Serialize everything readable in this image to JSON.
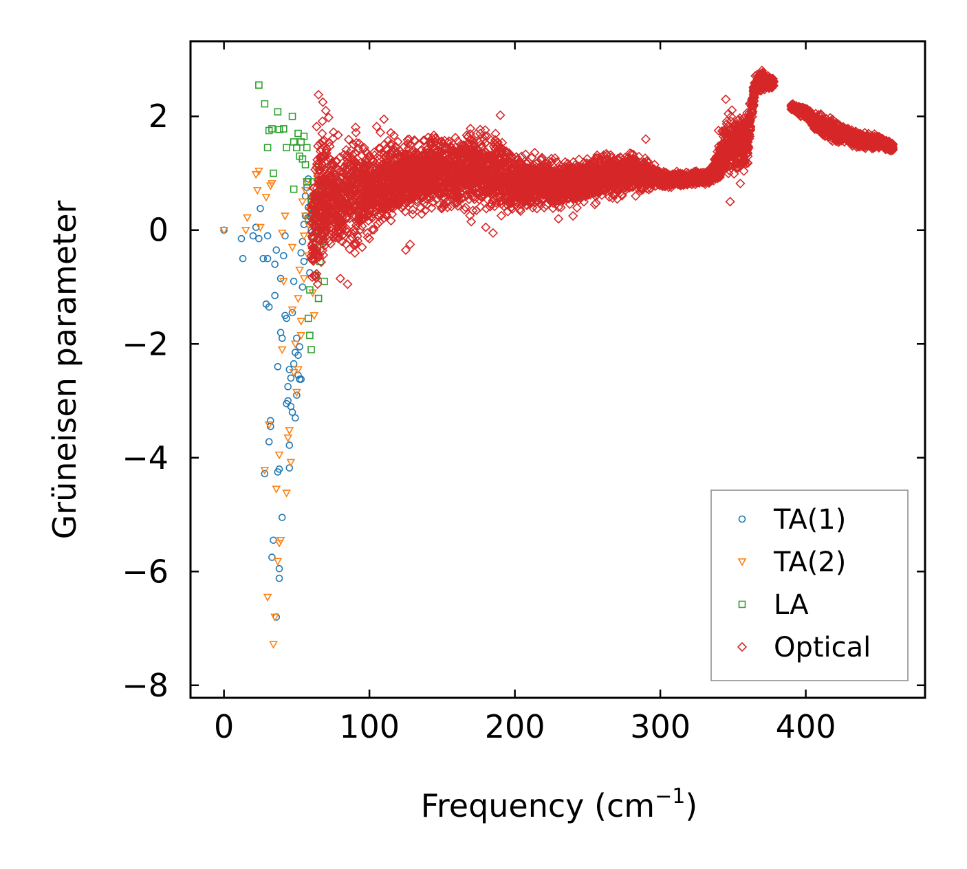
{
  "chart_data": {
    "type": "scatter",
    "title": "",
    "xlabel": "Frequency (cm",
    "xlabel_sup": "−1",
    "xlabel_end": ")",
    "ylabel": "Grüneisen parameter",
    "xlim": [
      -23,
      482
    ],
    "ylim": [
      -8.22,
      3.32
    ],
    "xticks": [
      0,
      100,
      200,
      300,
      400
    ],
    "xtick_labels": [
      "0",
      "100",
      "200",
      "300",
      "400"
    ],
    "yticks": [
      2,
      0,
      -2,
      -4,
      -6,
      -8
    ],
    "ytick_labels": [
      "2",
      "0",
      "−2",
      "−4",
      "−6",
      "−8"
    ],
    "grid": false,
    "legend_position": "lower-right",
    "series": [
      {
        "name": "TA(1)",
        "marker": "circle",
        "color": "#1f77b4",
        "points": [
          [
            0,
            0
          ],
          [
            12,
            -0.15
          ],
          [
            13,
            -0.5
          ],
          [
            20,
            -0.1
          ],
          [
            22,
            0.05
          ],
          [
            24,
            -0.15
          ],
          [
            25,
            0.38
          ],
          [
            27,
            -0.5
          ],
          [
            28,
            -4.28
          ],
          [
            29,
            -1.3
          ],
          [
            30,
            -0.1
          ],
          [
            30,
            -0.5
          ],
          [
            31,
            -1.35
          ],
          [
            31,
            -3.72
          ],
          [
            32,
            -3.35
          ],
          [
            32,
            -3.45
          ],
          [
            33,
            -5.75
          ],
          [
            34,
            -5.45
          ],
          [
            35,
            -1.15
          ],
          [
            35,
            -0.6
          ],
          [
            36,
            -6.8
          ],
          [
            36,
            -0.35
          ],
          [
            37,
            -4.25
          ],
          [
            37,
            -2.4
          ],
          [
            38,
            -5.95
          ],
          [
            38,
            -6.12
          ],
          [
            38,
            -4.2
          ],
          [
            39,
            -1.8
          ],
          [
            39,
            -0.85
          ],
          [
            40,
            -1.9
          ],
          [
            40,
            -5.05
          ],
          [
            41,
            -0.45
          ],
          [
            42,
            -0.1
          ],
          [
            42,
            -1.5
          ],
          [
            43,
            -1.55
          ],
          [
            43,
            -3.05
          ],
          [
            44,
            -3.0
          ],
          [
            44,
            -2.75
          ],
          [
            45,
            -3.78
          ],
          [
            45,
            -2.45
          ],
          [
            45,
            -4.18
          ],
          [
            46,
            -3.1
          ],
          [
            46,
            -2.6
          ],
          [
            47,
            -3.2
          ],
          [
            47,
            -1.45
          ],
          [
            48,
            -2.35
          ],
          [
            48,
            -0.9
          ],
          [
            49,
            -2.15
          ],
          [
            49,
            -3.3
          ],
          [
            50,
            -1.9
          ],
          [
            50,
            -2.9
          ],
          [
            51,
            -2.55
          ],
          [
            51,
            -2.2
          ],
          [
            52,
            -2.05
          ],
          [
            52,
            -2.62
          ],
          [
            53,
            -2.62
          ],
          [
            53,
            -0.4
          ],
          [
            54,
            -1.0
          ],
          [
            54,
            -0.2
          ],
          [
            55,
            -0.55
          ],
          [
            55,
            0.1
          ],
          [
            56,
            0.25
          ],
          [
            56,
            0.6
          ],
          [
            57,
            0.75
          ],
          [
            58,
            0.4
          ],
          [
            58,
            0.9
          ],
          [
            59,
            -0.75
          ],
          [
            59,
            0.25
          ],
          [
            60,
            0.5
          ],
          [
            60,
            0.0
          ],
          [
            61,
            0.3
          ],
          [
            62,
            0.05
          ],
          [
            62,
            -0.3
          ],
          [
            63,
            0.2
          ],
          [
            64,
            0.3
          ]
        ]
      },
      {
        "name": "TA(2)",
        "marker": "triangle-down",
        "color": "#ff7f0e",
        "points": [
          [
            0,
            0
          ],
          [
            15,
            0.0
          ],
          [
            16,
            0.22
          ],
          [
            22,
            0.98
          ],
          [
            23,
            0.7
          ],
          [
            24,
            1.04
          ],
          [
            25,
            0.05
          ],
          [
            28,
            -4.22
          ],
          [
            29,
            0.58
          ],
          [
            30,
            -6.45
          ],
          [
            31,
            -3.42
          ],
          [
            32,
            0.78
          ],
          [
            33,
            0.82
          ],
          [
            34,
            -7.28
          ],
          [
            35,
            -6.8
          ],
          [
            36,
            -4.55
          ],
          [
            37,
            -5.82
          ],
          [
            38,
            -3.95
          ],
          [
            38,
            -5.5
          ],
          [
            39,
            -5.45
          ],
          [
            40,
            -0.05
          ],
          [
            40,
            -2.1
          ],
          [
            41,
            -0.9
          ],
          [
            42,
            0.25
          ],
          [
            43,
            -4.62
          ],
          [
            44,
            -3.65
          ],
          [
            45,
            -3.52
          ],
          [
            46,
            -4.08
          ],
          [
            47,
            -0.3
          ],
          [
            47,
            -1.4
          ],
          [
            48,
            -2.5
          ],
          [
            49,
            -2.0
          ],
          [
            50,
            -2.85
          ],
          [
            51,
            -2.45
          ],
          [
            51,
            -1.2
          ],
          [
            52,
            -0.7
          ],
          [
            53,
            -1.6
          ],
          [
            53,
            -1.85
          ],
          [
            54,
            0.5
          ],
          [
            55,
            -0.1
          ],
          [
            55,
            -0.85
          ],
          [
            56,
            0.25
          ],
          [
            56,
            0.7
          ],
          [
            57,
            0.85
          ],
          [
            58,
            0.1
          ],
          [
            58,
            -0.45
          ],
          [
            59,
            0.35
          ],
          [
            60,
            0.55
          ],
          [
            61,
            -1.1
          ],
          [
            61,
            0.2
          ],
          [
            62,
            -1.5
          ],
          [
            63,
            0.4
          ],
          [
            63,
            0.65
          ],
          [
            64,
            0.95
          ]
        ]
      },
      {
        "name": "LA",
        "marker": "square",
        "color": "#2ca02c",
        "points": [
          [
            24,
            2.55
          ],
          [
            28,
            2.22
          ],
          [
            30,
            1.45
          ],
          [
            31,
            1.75
          ],
          [
            33,
            1.78
          ],
          [
            34,
            1.0
          ],
          [
            37,
            2.08
          ],
          [
            38,
            1.77
          ],
          [
            41,
            1.78
          ],
          [
            43,
            1.45
          ],
          [
            47,
            2.0
          ],
          [
            48,
            1.55
          ],
          [
            48,
            0.72
          ],
          [
            50,
            1.45
          ],
          [
            51,
            1.7
          ],
          [
            52,
            1.3
          ],
          [
            53,
            1.55
          ],
          [
            54,
            1.25
          ],
          [
            55,
            1.65
          ],
          [
            56,
            1.15
          ],
          [
            57,
            1.45
          ],
          [
            57,
            0.85
          ],
          [
            58,
            0.2
          ],
          [
            58,
            -1.55
          ],
          [
            59,
            -1.05
          ],
          [
            59,
            -1.85
          ],
          [
            60,
            0.55
          ],
          [
            60,
            -2.1
          ],
          [
            61,
            0.3
          ],
          [
            61,
            -0.5
          ],
          [
            62,
            -0.1
          ],
          [
            62,
            0.85
          ],
          [
            63,
            -0.8
          ],
          [
            63,
            0.6
          ],
          [
            64,
            -0.3
          ],
          [
            64,
            0.1
          ],
          [
            65,
            1.1
          ],
          [
            65,
            -1.2
          ],
          [
            66,
            0.4
          ],
          [
            66,
            -0.55
          ],
          [
            67,
            0.15
          ],
          [
            67,
            0.7
          ],
          [
            68,
            0.25
          ],
          [
            68,
            -0.2
          ],
          [
            69,
            0.55
          ],
          [
            69,
            -0.9
          ],
          [
            70,
            0.35
          ],
          [
            70,
            0.0
          ]
        ]
      },
      {
        "name": "Optical",
        "marker": "diamond",
        "color": "#d62728",
        "envelope": [
          [
            60,
            -1.4,
            1.0
          ],
          [
            65,
            -1.2,
            2.4
          ],
          [
            70,
            -0.9,
            2.1
          ],
          [
            80,
            -0.8,
            1.75
          ],
          [
            90,
            -0.6,
            2.05
          ],
          [
            100,
            -0.3,
            1.65
          ],
          [
            115,
            -0.1,
            1.85
          ],
          [
            130,
            0.1,
            1.8
          ],
          [
            150,
            0.15,
            1.85
          ],
          [
            170,
            0.2,
            1.9
          ],
          [
            185,
            0.15,
            2.0
          ],
          [
            200,
            0.2,
            1.45
          ],
          [
            220,
            0.3,
            1.35
          ],
          [
            240,
            0.35,
            1.3
          ],
          [
            260,
            0.4,
            1.45
          ],
          [
            280,
            0.55,
            1.5
          ],
          [
            300,
            0.7,
            1.1
          ],
          [
            320,
            0.75,
            1.05
          ],
          [
            335,
            0.8,
            1.1
          ],
          [
            345,
            0.8,
            2.15
          ],
          [
            360,
            0.85,
            2.3
          ],
          [
            365,
            2.3,
            2.75
          ],
          [
            370,
            2.4,
            2.85
          ],
          [
            378,
            2.45,
            2.7
          ]
        ],
        "cluster2": [
          [
            390,
            2.1,
            2.25
          ],
          [
            400,
            1.9,
            2.2
          ],
          [
            410,
            1.6,
            2.1
          ],
          [
            420,
            1.5,
            1.95
          ],
          [
            430,
            1.45,
            1.85
          ],
          [
            440,
            1.4,
            1.75
          ],
          [
            450,
            1.4,
            1.7
          ],
          [
            460,
            1.35,
            1.55
          ]
        ],
        "points": [
          [
            65,
            2.38
          ],
          [
            68,
            2.25
          ],
          [
            70,
            2.1
          ],
          [
            72,
            1.98
          ],
          [
            80,
            -0.85
          ],
          [
            85,
            -0.95
          ],
          [
            90,
            -0.4
          ],
          [
            95,
            -0.3
          ],
          [
            100,
            -0.15
          ],
          [
            105,
            1.82
          ],
          [
            110,
            1.95
          ],
          [
            125,
            -0.35
          ],
          [
            128,
            -0.25
          ],
          [
            170,
            0.15
          ],
          [
            180,
            0.05
          ],
          [
            185,
            -0.05
          ],
          [
            190,
            2.02
          ],
          [
            230,
            0.2
          ],
          [
            240,
            0.25
          ],
          [
            290,
            1.6
          ],
          [
            340,
            1.75
          ],
          [
            345,
            2.3
          ],
          [
            348,
            0.5
          ],
          [
            355,
            0.82
          ]
        ]
      }
    ]
  }
}
